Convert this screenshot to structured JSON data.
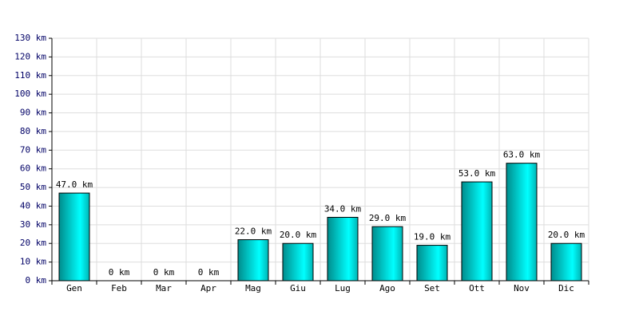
{
  "chart_data": {
    "type": "bar",
    "categories": [
      "Gen",
      "Feb",
      "Mar",
      "Apr",
      "Mag",
      "Giu",
      "Lug",
      "Ago",
      "Set",
      "Ott",
      "Nov",
      "Dic"
    ],
    "values": [
      47,
      0,
      0,
      0,
      22,
      20,
      34,
      29,
      19,
      53,
      63,
      20
    ],
    "value_labels": [
      "47.0 km",
      "0 km",
      "0 km",
      "0 km",
      "22.0 km",
      "20.0 km",
      "34.0 km",
      "29.0 km",
      "19.0 km",
      "53.0 km",
      "63.0 km",
      "20.0 km"
    ],
    "color": "#00cccc",
    "ylim": [
      0,
      130
    ],
    "yticks": [
      {
        "value": 0,
        "label": "0 km"
      },
      {
        "value": 10,
        "label": "10 km"
      },
      {
        "value": 20,
        "label": "20 km"
      },
      {
        "value": 30,
        "label": "30 km"
      },
      {
        "value": 40,
        "label": "40 km"
      },
      {
        "value": 50,
        "label": "50 km"
      },
      {
        "value": 60,
        "label": "60 km"
      },
      {
        "value": 70,
        "label": "70 km"
      },
      {
        "value": 80,
        "label": "80 km"
      },
      {
        "value": 90,
        "label": "90 km"
      },
      {
        "value": 100,
        "label": "100 km"
      },
      {
        "value": 110,
        "label": "110 km"
      },
      {
        "value": 120,
        "label": "120 km"
      },
      {
        "value": 130,
        "label": "130 km"
      }
    ],
    "grid": true
  }
}
